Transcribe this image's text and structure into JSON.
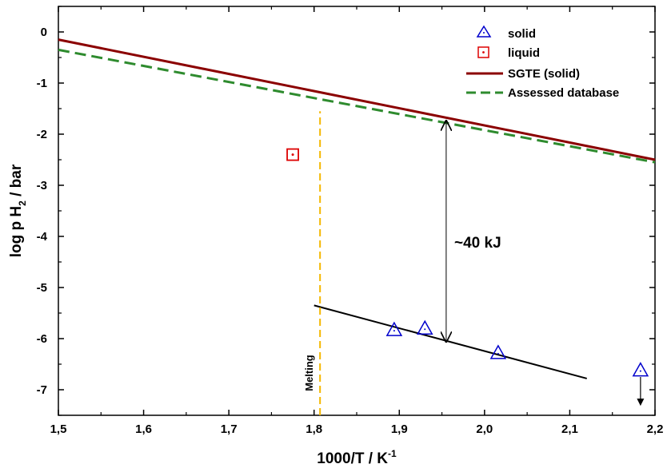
{
  "chart_data": {
    "type": "scatter",
    "xlabel": "1000/T / K",
    "xlabel_sup": "-1",
    "ylabel": "log p H",
    "ylabel_sub": "2",
    "ylabel_suffix": " / bar",
    "xlim": [
      1.5,
      2.2
    ],
    "ylim": [
      -7.5,
      0.5
    ],
    "x_ticks": [
      1.5,
      1.6,
      1.7,
      1.8,
      1.9,
      2.0,
      2.1,
      2.2
    ],
    "x_tick_labels": [
      "1,5",
      "1,6",
      "1,7",
      "1,8",
      "1,9",
      "2,0",
      "2,1",
      "2,2"
    ],
    "y_ticks": [
      0,
      -1,
      -2,
      -3,
      -4,
      -5,
      -6,
      -7
    ],
    "y_tick_labels": [
      "0",
      "-1",
      "-2",
      "-3",
      "-4",
      "-5",
      "-6",
      "-7"
    ],
    "grid": false,
    "legend_position": "top-right",
    "series": [
      {
        "name": "solid",
        "kind": "scatter",
        "marker": "triangle",
        "color": "#0000cc",
        "points": [
          [
            1.894,
            -5.83
          ],
          [
            1.93,
            -5.8
          ],
          [
            2.016,
            -6.28
          ],
          [
            2.183,
            -6.62
          ]
        ]
      },
      {
        "name": "liquid",
        "kind": "scatter",
        "marker": "square",
        "color": "#dd0000",
        "points": [
          [
            1.775,
            -2.4
          ]
        ]
      },
      {
        "name": "SGTE (solid)",
        "kind": "line",
        "style": "solid",
        "color": "#8b0000",
        "points": [
          [
            1.5,
            -0.15
          ],
          [
            2.2,
            -2.5
          ]
        ]
      },
      {
        "name": "Assessed database",
        "kind": "line",
        "style": "dashed",
        "color": "#2e8b2e",
        "points": [
          [
            1.5,
            -0.35
          ],
          [
            2.2,
            -2.55
          ]
        ]
      }
    ],
    "fit_line": {
      "color": "#000000",
      "points": [
        [
          1.8,
          -5.35
        ],
        [
          2.12,
          -6.78
        ]
      ]
    },
    "melting_line": {
      "color": "#f5b800",
      "x": 1.807,
      "y_range": [
        -7.5,
        -1.55
      ]
    },
    "double_arrow": {
      "x": 1.955,
      "y_top": -1.72,
      "y_bottom": -6.08
    },
    "down_arrow": {
      "x": 2.183,
      "y_from": -6.75,
      "y_to": -7.3
    },
    "annotations": {
      "energy": "~40 kJ",
      "melting": "Melting"
    }
  }
}
